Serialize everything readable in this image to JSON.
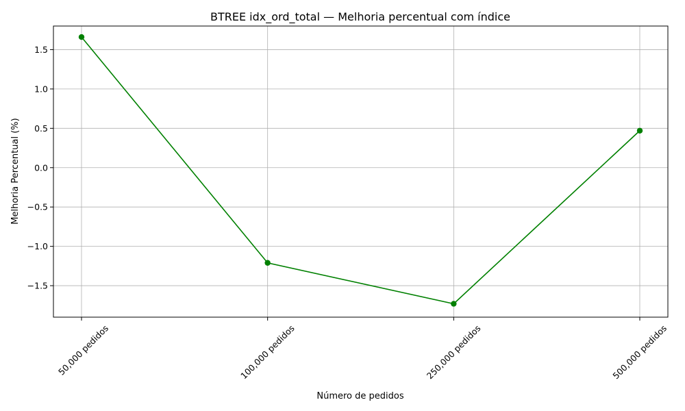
{
  "chart_data": {
    "type": "line",
    "title": "BTREE idx_ord_total — Melhoria percentual com índice",
    "xlabel": "Número de pedidos",
    "ylabel": "Melhoria Percentual (%)",
    "categories": [
      "50,000 pedidos",
      "100,000 pedidos",
      "250,000 pedidos",
      "500,000 pedidos"
    ],
    "values": [
      1.66,
      -1.21,
      -1.73,
      0.47
    ],
    "ylim": [
      -1.9,
      1.8
    ],
    "yticks": [
      -1.5,
      -1.0,
      -0.5,
      0.0,
      0.5,
      1.0,
      1.5
    ],
    "ytick_labels": [
      "−1.5",
      "−1.0",
      "−0.5",
      "0.0",
      "0.5",
      "1.0",
      "1.5"
    ],
    "grid": true,
    "colors": {
      "line": "#008000",
      "grid": "#b0b0b0",
      "axes": "#000000"
    }
  }
}
